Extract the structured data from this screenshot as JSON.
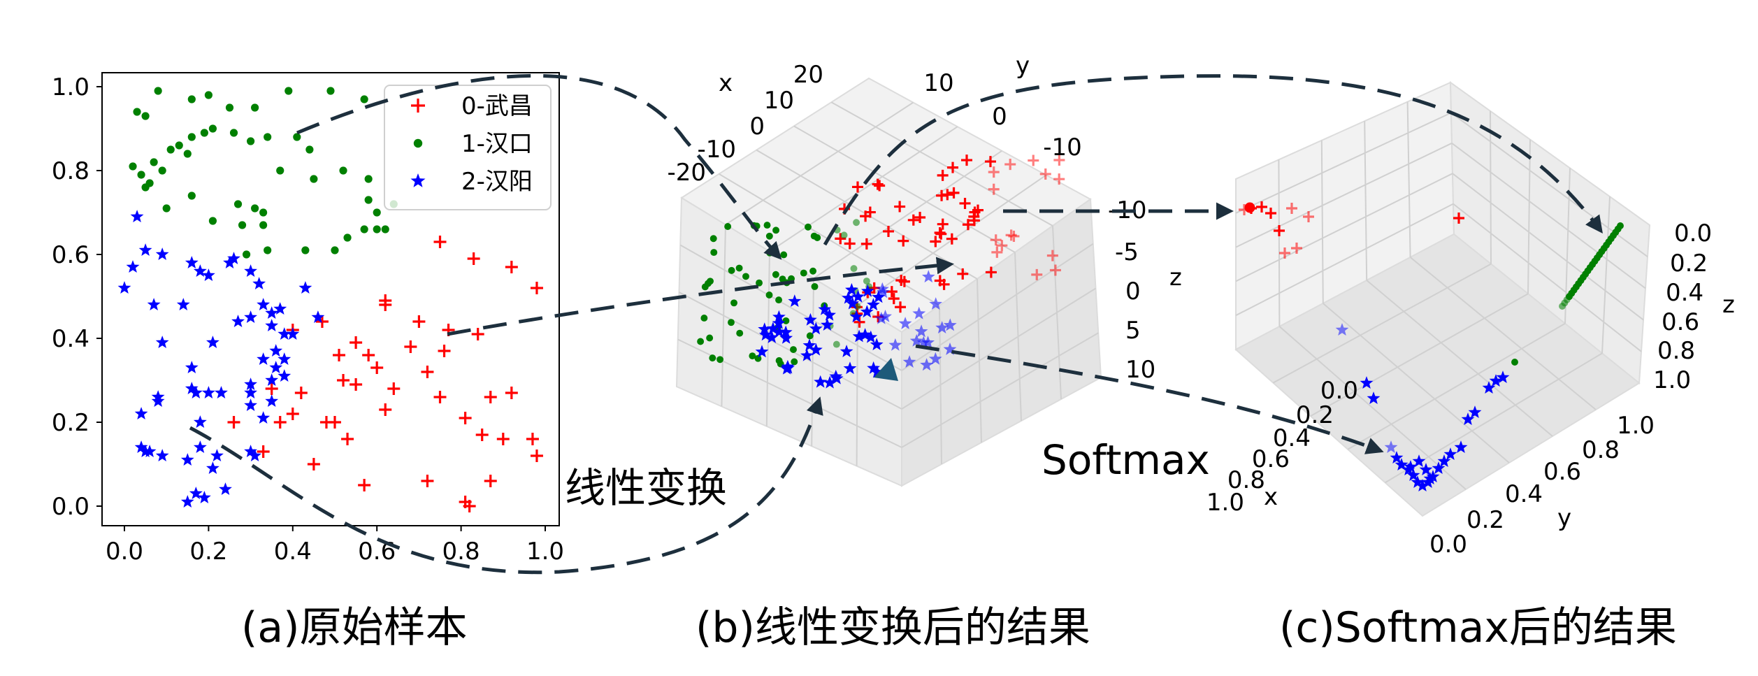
{
  "captions": {
    "a": "(a)原始样本",
    "b": "(b)线性变换后的结果",
    "c": "(c)Softmax后的结果"
  },
  "annotations": {
    "linear": "线性变换",
    "softmax": "Softmax"
  },
  "colors": {
    "class0": "#ff0000",
    "class1": "#008000",
    "class2": "#0000ff",
    "arrow": "#1d2f3d"
  },
  "chart_data": [
    {
      "type": "scatter",
      "xlim": [
        0,
        1.0
      ],
      "ylim": [
        0,
        1.0
      ],
      "xticks": [
        "0.0",
        "0.2",
        "0.4",
        "0.6",
        "0.8",
        "1.0"
      ],
      "yticks": [
        "0.0",
        "0.2",
        "0.4",
        "0.6",
        "0.8",
        "1.0"
      ],
      "legend": {
        "position": "top-right",
        "entries": [
          "0-武昌",
          "1-汉口",
          "2-汉阳"
        ]
      },
      "series": [
        {
          "name": "0-武昌",
          "marker": "plus",
          "color": "#ff0000",
          "points": [
            [
              0.75,
              0.63
            ],
            [
              0.92,
              0.57
            ],
            [
              0.83,
              0.59
            ],
            [
              0.98,
              0.52
            ],
            [
              0.7,
              0.44
            ],
            [
              0.77,
              0.42
            ],
            [
              0.62,
              0.49
            ],
            [
              0.62,
              0.48
            ],
            [
              0.55,
              0.39
            ],
            [
              0.58,
              0.36
            ],
            [
              0.51,
              0.36
            ],
            [
              0.47,
              0.44
            ],
            [
              0.4,
              0.42
            ],
            [
              0.72,
              0.32
            ],
            [
              0.76,
              0.37
            ],
            [
              0.84,
              0.41
            ],
            [
              0.35,
              0.28
            ],
            [
              0.42,
              0.27
            ],
            [
              0.48,
              0.2
            ],
            [
              0.5,
              0.2
            ],
            [
              0.53,
              0.16
            ],
            [
              0.55,
              0.29
            ],
            [
              0.4,
              0.22
            ],
            [
              0.37,
              0.2
            ],
            [
              0.62,
              0.23
            ],
            [
              0.64,
              0.28
            ],
            [
              0.75,
              0.26
            ],
            [
              0.81,
              0.21
            ],
            [
              0.85,
              0.17
            ],
            [
              0.92,
              0.27
            ],
            [
              0.87,
              0.26
            ],
            [
              0.97,
              0.16
            ],
            [
              0.98,
              0.12
            ],
            [
              0.9,
              0.16
            ],
            [
              0.72,
              0.06
            ],
            [
              0.81,
              0.01
            ],
            [
              0.82,
              0.0
            ],
            [
              0.87,
              0.06
            ],
            [
              0.57,
              0.05
            ],
            [
              0.45,
              0.1
            ],
            [
              0.33,
              0.13
            ],
            [
              0.6,
              0.33
            ],
            [
              0.52,
              0.3
            ],
            [
              0.68,
              0.38
            ],
            [
              0.26,
              0.2
            ]
          ]
        },
        {
          "name": "1-汉口",
          "marker": "dot",
          "color": "#008000",
          "points": [
            [
              0.03,
              0.94
            ],
            [
              0.08,
              0.99
            ],
            [
              0.16,
              0.97
            ],
            [
              0.2,
              0.98
            ],
            [
              0.25,
              0.95
            ],
            [
              0.31,
              0.95
            ],
            [
              0.39,
              0.99
            ],
            [
              0.49,
              0.99
            ],
            [
              0.57,
              0.97
            ],
            [
              0.05,
              0.93
            ],
            [
              0.02,
              0.81
            ],
            [
              0.07,
              0.82
            ],
            [
              0.09,
              0.8
            ],
            [
              0.11,
              0.85
            ],
            [
              0.13,
              0.86
            ],
            [
              0.15,
              0.84
            ],
            [
              0.16,
              0.88
            ],
            [
              0.19,
              0.89
            ],
            [
              0.21,
              0.9
            ],
            [
              0.26,
              0.89
            ],
            [
              0.3,
              0.87
            ],
            [
              0.34,
              0.88
            ],
            [
              0.41,
              0.88
            ],
            [
              0.44,
              0.85
            ],
            [
              0.04,
              0.79
            ],
            [
              0.05,
              0.76
            ],
            [
              0.1,
              0.71
            ],
            [
              0.16,
              0.74
            ],
            [
              0.21,
              0.68
            ],
            [
              0.27,
              0.72
            ],
            [
              0.31,
              0.71
            ],
            [
              0.33,
              0.7
            ],
            [
              0.28,
              0.67
            ],
            [
              0.33,
              0.67
            ],
            [
              0.37,
              0.8
            ],
            [
              0.45,
              0.78
            ],
            [
              0.52,
              0.8
            ],
            [
              0.58,
              0.78
            ],
            [
              0.58,
              0.73
            ],
            [
              0.6,
              0.7
            ],
            [
              0.6,
              0.66
            ],
            [
              0.57,
              0.66
            ],
            [
              0.53,
              0.64
            ],
            [
              0.62,
              0.66
            ],
            [
              0.5,
              0.61
            ],
            [
              0.43,
              0.61
            ],
            [
              0.34,
              0.61
            ],
            [
              0.29,
              0.6
            ],
            [
              0.06,
              0.77
            ],
            [
              0.64,
              0.72
            ]
          ]
        },
        {
          "name": "2-汉阳",
          "marker": "star",
          "color": "#0000ff",
          "points": [
            [
              0.03,
              0.69
            ],
            [
              0.05,
              0.61
            ],
            [
              0.09,
              0.6
            ],
            [
              0.16,
              0.58
            ],
            [
              0.2,
              0.55
            ],
            [
              0.25,
              0.58
            ],
            [
              0.26,
              0.59
            ],
            [
              0.3,
              0.56
            ],
            [
              0.02,
              0.57
            ],
            [
              0.0,
              0.52
            ],
            [
              0.07,
              0.48
            ],
            [
              0.14,
              0.48
            ],
            [
              0.18,
              0.56
            ],
            [
              0.32,
              0.53
            ],
            [
              0.33,
              0.48
            ],
            [
              0.35,
              0.46
            ],
            [
              0.38,
              0.41
            ],
            [
              0.43,
              0.52
            ],
            [
              0.46,
              0.45
            ],
            [
              0.4,
              0.41
            ],
            [
              0.3,
              0.45
            ],
            [
              0.27,
              0.44
            ],
            [
              0.09,
              0.39
            ],
            [
              0.21,
              0.39
            ],
            [
              0.35,
              0.43
            ],
            [
              0.36,
              0.37
            ],
            [
              0.36,
              0.33
            ],
            [
              0.38,
              0.31
            ],
            [
              0.35,
              0.3
            ],
            [
              0.3,
              0.29
            ],
            [
              0.3,
              0.27
            ],
            [
              0.16,
              0.33
            ],
            [
              0.16,
              0.28
            ],
            [
              0.17,
              0.27
            ],
            [
              0.2,
              0.27
            ],
            [
              0.23,
              0.27
            ],
            [
              0.18,
              0.2
            ],
            [
              0.08,
              0.26
            ],
            [
              0.08,
              0.25
            ],
            [
              0.04,
              0.22
            ],
            [
              0.3,
              0.24
            ],
            [
              0.35,
              0.25
            ],
            [
              0.33,
              0.21
            ],
            [
              0.04,
              0.14
            ],
            [
              0.06,
              0.13
            ],
            [
              0.09,
              0.12
            ],
            [
              0.05,
              0.13
            ],
            [
              0.15,
              0.11
            ],
            [
              0.18,
              0.14
            ],
            [
              0.22,
              0.12
            ],
            [
              0.31,
              0.12
            ],
            [
              0.3,
              0.13
            ],
            [
              0.21,
              0.09
            ],
            [
              0.17,
              0.03
            ],
            [
              0.19,
              0.02
            ],
            [
              0.15,
              0.01
            ],
            [
              0.24,
              0.04
            ],
            [
              0.38,
              0.35
            ],
            [
              0.33,
              0.35
            ],
            [
              0.37,
              0.47
            ]
          ]
        }
      ]
    },
    {
      "type": "scatter",
      "projection": "3d",
      "axis_labels": {
        "x": "x",
        "y": "y",
        "z": "z"
      },
      "xticks": [
        "-20",
        "-10",
        "0",
        "10",
        "20"
      ],
      "yticks": [
        "-10",
        "0",
        "10"
      ],
      "zticks": [
        "-10",
        "-5",
        "0",
        "5",
        "10"
      ],
      "series": [
        {
          "name": "0-武昌",
          "marker": "plus",
          "color": "#ff0000"
        },
        {
          "name": "1-汉口",
          "marker": "dot",
          "color": "#008000"
        },
        {
          "name": "2-汉阳",
          "marker": "star",
          "color": "#0000ff"
        }
      ]
    },
    {
      "type": "scatter",
      "projection": "3d",
      "axis_labels": {
        "x": "x",
        "y": "y",
        "z": "z"
      },
      "xticks": [
        "0.0",
        "0.2",
        "0.4",
        "0.6",
        "0.8",
        "1.0"
      ],
      "yticks": [
        "0.0",
        "0.2",
        "0.4",
        "0.6",
        "0.8",
        "1.0"
      ],
      "zticks": [
        "0.0",
        "0.2",
        "0.4",
        "0.6",
        "0.8",
        "1.0"
      ],
      "series": [
        {
          "name": "0-武昌",
          "marker": "plus",
          "color": "#ff0000"
        },
        {
          "name": "1-汉口",
          "marker": "dot",
          "color": "#008000"
        },
        {
          "name": "2-汉阳",
          "marker": "star",
          "color": "#0000ff"
        }
      ]
    }
  ]
}
